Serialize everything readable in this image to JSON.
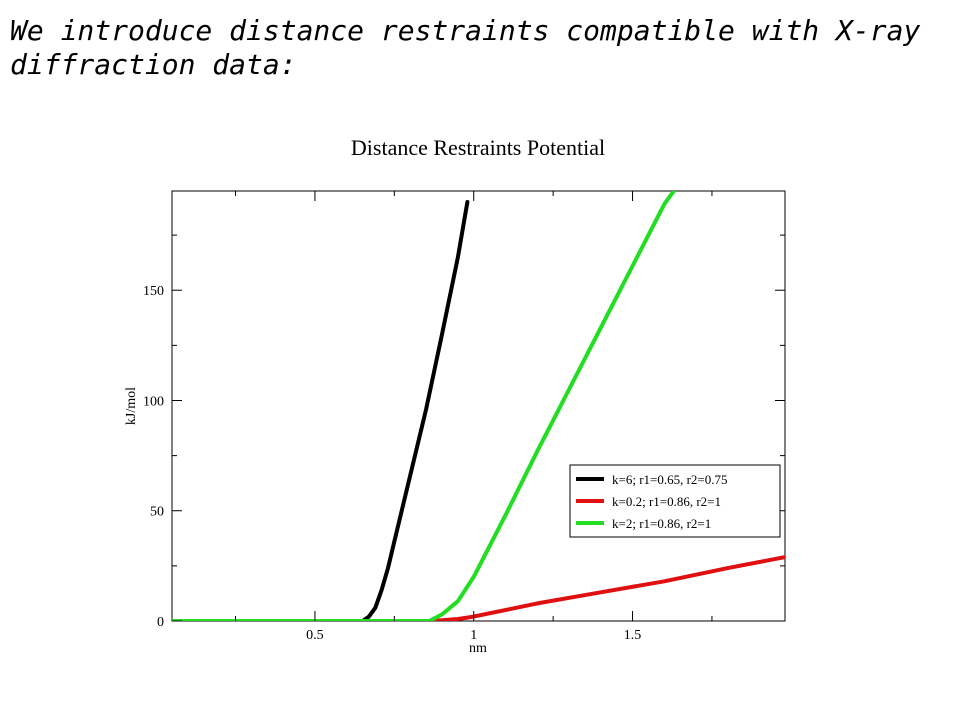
{
  "slide": {
    "text_line1": "We introduce distance restraints compatible with X-ray",
    "text_line2": "diffraction data:"
  },
  "chart_data": {
    "type": "line",
    "title": "Distance Restraints Potential",
    "xlabel": "nm",
    "ylabel": "kJ/mol",
    "xlim": [
      0.05,
      1.98
    ],
    "ylim": [
      0,
      195
    ],
    "x_ticks": [
      0.5,
      1,
      1.5
    ],
    "x_tick_labels": [
      "0.5",
      "1",
      "1.5"
    ],
    "y_ticks": [
      0,
      50,
      100,
      150
    ],
    "y_tick_labels": [
      "0",
      "50",
      "100",
      "150"
    ],
    "grid": false,
    "legend_position": "lower-right",
    "series": [
      {
        "name": "k=6; r1=0.65, r2=0.75",
        "color": "#000000",
        "points": [
          [
            0.05,
            0
          ],
          [
            0.65,
            0
          ],
          [
            0.67,
            2
          ],
          [
            0.69,
            6
          ],
          [
            0.71,
            14
          ],
          [
            0.73,
            24
          ],
          [
            0.75,
            36
          ],
          [
            0.8,
            66
          ],
          [
            0.85,
            96
          ],
          [
            0.9,
            130
          ],
          [
            0.95,
            165
          ],
          [
            0.98,
            190
          ]
        ]
      },
      {
        "name": "k=0.2; r1=0.86, r2=1",
        "color": "#e01010",
        "points": [
          [
            0.05,
            0
          ],
          [
            0.86,
            0
          ],
          [
            0.9,
            0.3
          ],
          [
            0.95,
            0.9
          ],
          [
            1.0,
            2
          ],
          [
            1.2,
            8
          ],
          [
            1.4,
            13
          ],
          [
            1.6,
            18
          ],
          [
            1.8,
            24
          ],
          [
            1.98,
            29
          ]
        ]
      },
      {
        "name": "k=2; r1=0.86, r2=1",
        "color": "#22dd22",
        "points": [
          [
            0.05,
            0
          ],
          [
            0.86,
            0
          ],
          [
            0.9,
            3
          ],
          [
            0.95,
            9
          ],
          [
            1.0,
            20
          ],
          [
            1.1,
            48
          ],
          [
            1.2,
            77
          ],
          [
            1.3,
            105
          ],
          [
            1.4,
            133
          ],
          [
            1.5,
            161
          ],
          [
            1.6,
            189
          ],
          [
            1.63,
            195
          ]
        ]
      }
    ]
  }
}
